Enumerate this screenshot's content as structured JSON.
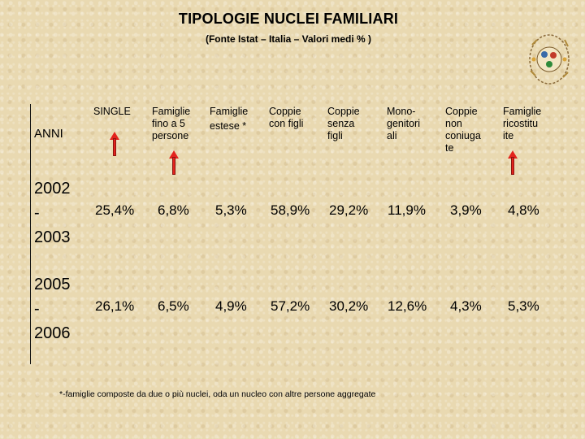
{
  "title": "TIPOLOGIE NUCLEI FAMILIARI",
  "subtitle": "(Fonte Istat – Italia – Valori medi % )",
  "logo_icon": "decorative-emblem-icon",
  "arrow_icon": "red-up-arrow-icon",
  "arrow_color": "#e3231d",
  "table": {
    "corner_label": "ANNI",
    "columns": [
      {
        "lines": [
          "SINGLE"
        ]
      },
      {
        "lines": [
          "Famiglie",
          "fino a 5",
          "persone"
        ]
      },
      {
        "lines": [
          "Famiglie",
          "estese *"
        ]
      },
      {
        "lines": [
          "Coppie",
          "con figli"
        ]
      },
      {
        "lines": [
          "Coppie",
          "senza",
          "figli"
        ]
      },
      {
        "lines": [
          "Mono-",
          "genitori",
          "ali"
        ]
      },
      {
        "lines": [
          "Coppie",
          "non",
          "coniuga",
          "te"
        ]
      },
      {
        "lines": [
          "Famiglie",
          "ricostitu",
          "ite"
        ]
      }
    ],
    "rows": [
      {
        "year_lines": [
          "2002",
          "-",
          "2003"
        ],
        "values": [
          "25,4%",
          "6,8%",
          "5,3%",
          "58,9%",
          "29,2%",
          "11,9%",
          "3,9%",
          "4,8%"
        ]
      },
      {
        "year_lines": [
          "2005",
          "-",
          "2006"
        ],
        "values": [
          "26,1%",
          "6,5%",
          "4,9%",
          "57,2%",
          "30,2%",
          "12,6%",
          "4,3%",
          "5,3%"
        ]
      }
    ]
  },
  "footnote": "*-famiglie composte da due o più nuclei, oda un  nucleo con altre persone aggregate"
}
